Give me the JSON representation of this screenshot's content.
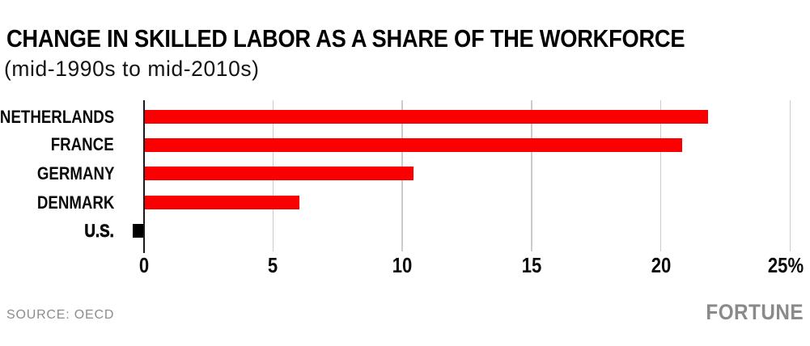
{
  "chart_data": {
    "type": "bar",
    "orientation": "horizontal",
    "title": "CHANGE IN SKILLED LABOR AS A SHARE OF THE WORKFORCE",
    "subtitle": "(mid-1990s to mid-2010s)",
    "categories": [
      "NETHERLANDS",
      "FRANCE",
      "GERMANY",
      "DENMARK",
      "U.S."
    ],
    "values": [
      21.8,
      20.8,
      10.4,
      6.0,
      -0.4
    ],
    "bar_colors": [
      "#fa0000",
      "#fa0000",
      "#fa0000",
      "#fa0000",
      "#000000"
    ],
    "categories_emphasis": [
      false,
      false,
      false,
      false,
      true
    ],
    "unit": "%",
    "xlim": [
      -0.5,
      25
    ],
    "x_ticks": [
      0,
      5,
      10,
      15,
      20,
      25
    ],
    "x_tick_labels": [
      "0",
      "5",
      "10",
      "15",
      "20",
      "25%"
    ],
    "grid": "vertical",
    "legend": "none"
  },
  "colors": {
    "bar_red": "#fa0000",
    "bar_black": "#000000",
    "axis": "#1a1a1a",
    "gridline": "#cccccc",
    "muted_gray": "#8c8c8c"
  },
  "footer": {
    "source": "SOURCE: OECD",
    "brand": "FORTUNE"
  }
}
